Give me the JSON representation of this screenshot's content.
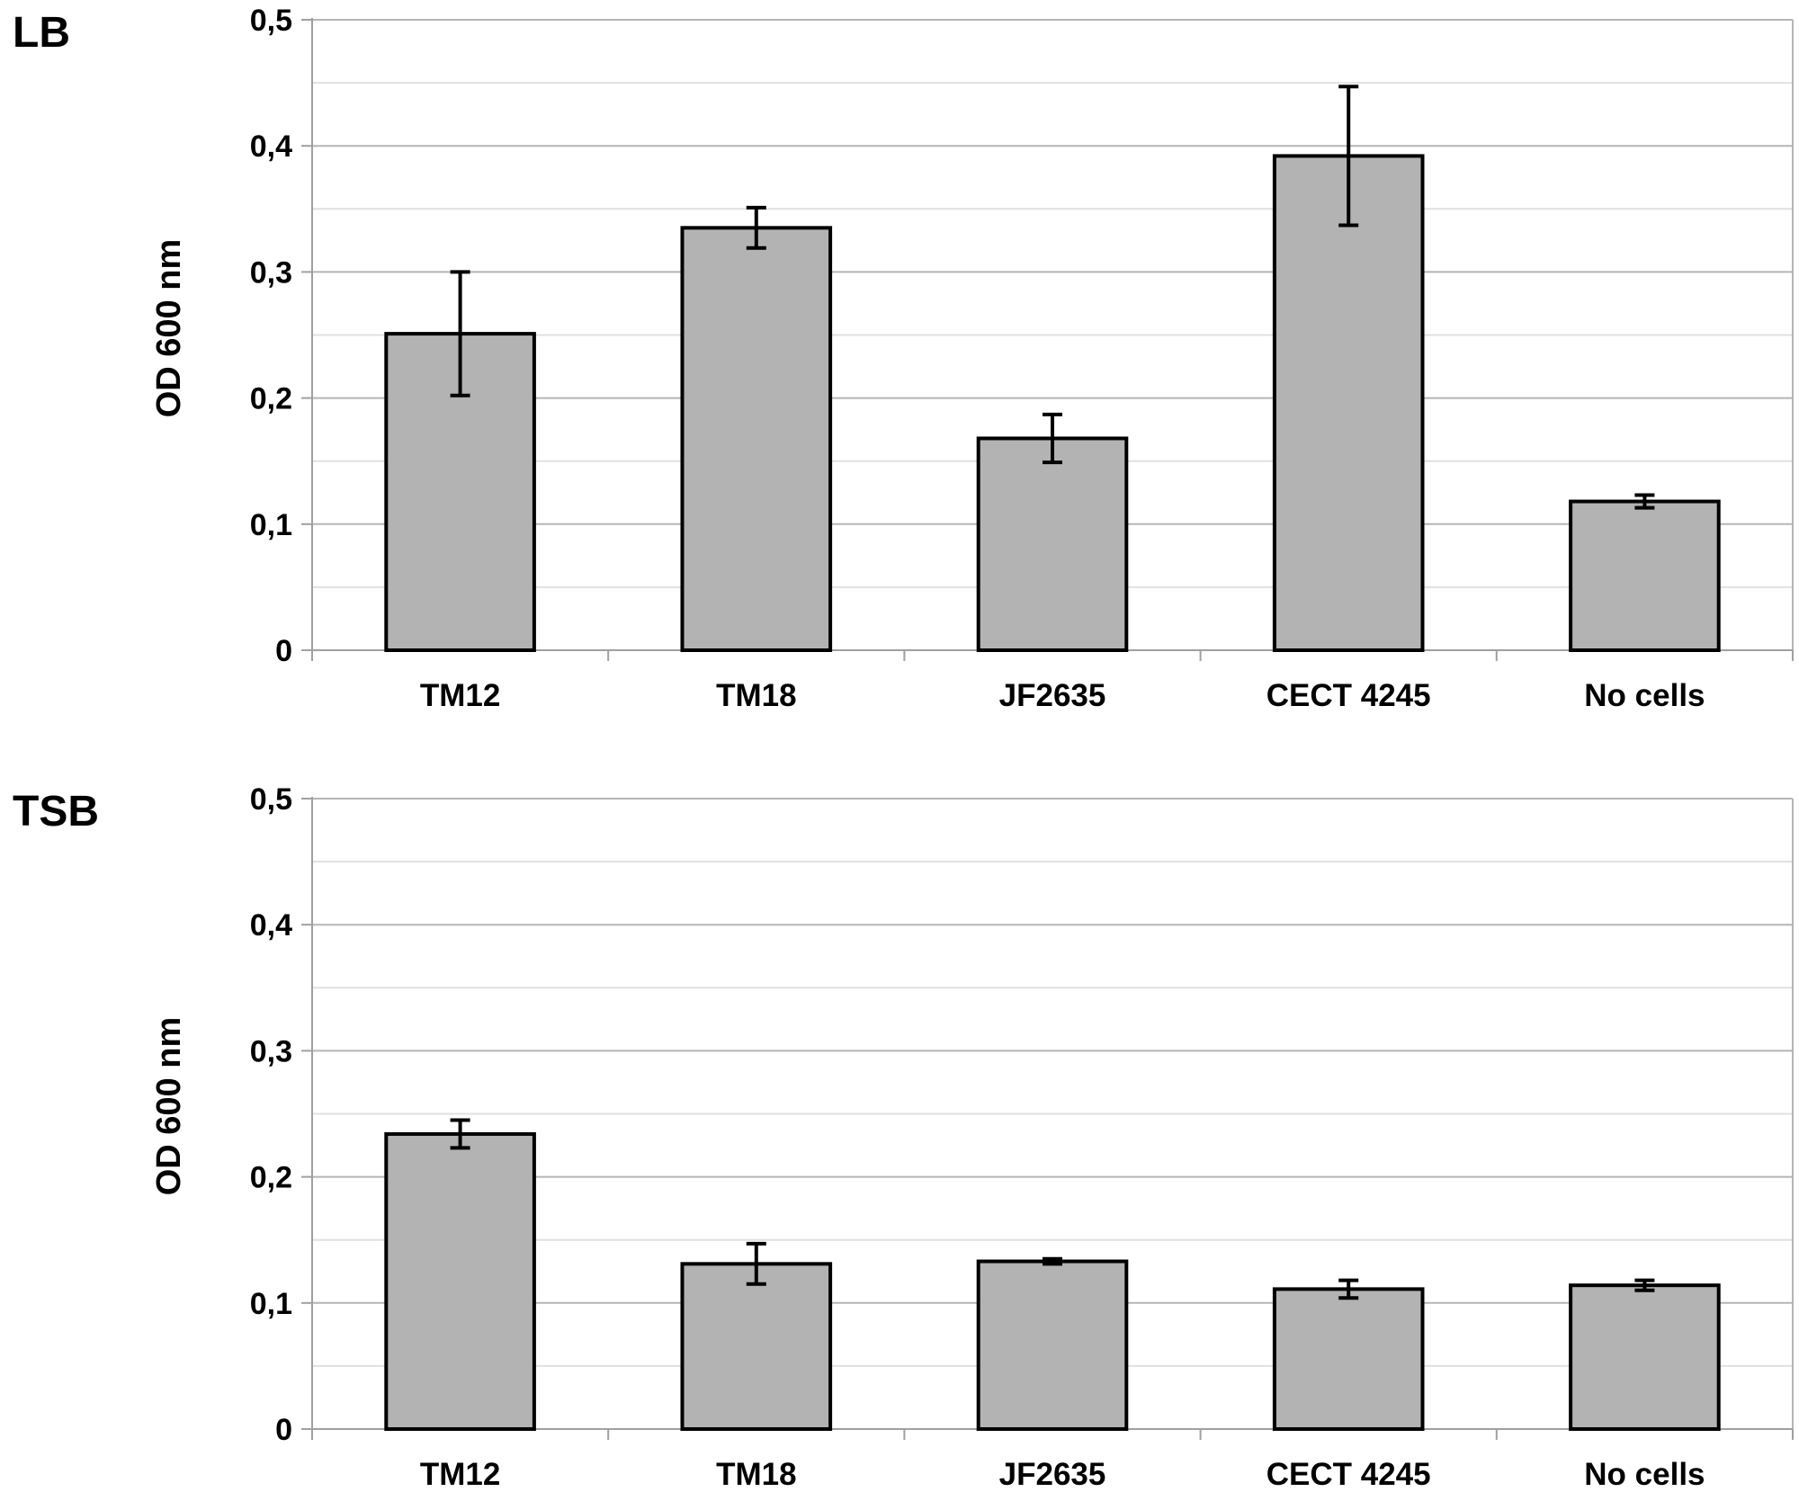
{
  "chart_data": [
    {
      "type": "bar",
      "title": "LB",
      "ylabel": "OD 600 nm",
      "xlabel": "",
      "ylim": [
        0,
        0.5
      ],
      "yticks": [
        0,
        0.1,
        0.2,
        0.3,
        0.4,
        0.5
      ],
      "ytick_labels": [
        "0",
        "0,1",
        "0,2",
        "0,3",
        "0,4",
        "0,5"
      ],
      "grid": true,
      "categories": [
        "TM12",
        "TM18",
        "JF2635",
        "CECT 4245",
        "No cells"
      ],
      "values": [
        0.251,
        0.335,
        0.168,
        0.392,
        0.118
      ],
      "errors": [
        0.049,
        0.016,
        0.019,
        0.055,
        0.005
      ],
      "bar_color": "#b3b3b3"
    },
    {
      "type": "bar",
      "title": "TSB",
      "ylabel": "OD 600 nm",
      "xlabel": "",
      "ylim": [
        0,
        0.5
      ],
      "yticks": [
        0,
        0.1,
        0.2,
        0.3,
        0.4,
        0.5
      ],
      "ytick_labels": [
        "0",
        "0,1",
        "0,2",
        "0,3",
        "0,4",
        "0,5"
      ],
      "grid": true,
      "categories": [
        "TM12",
        "TM18",
        "JF2635",
        "CECT 4245",
        "No cells"
      ],
      "values": [
        0.234,
        0.131,
        0.133,
        0.111,
        0.114
      ],
      "errors": [
        0.011,
        0.016,
        0.002,
        0.007,
        0.004
      ],
      "bar_color": "#b3b3b3"
    }
  ]
}
